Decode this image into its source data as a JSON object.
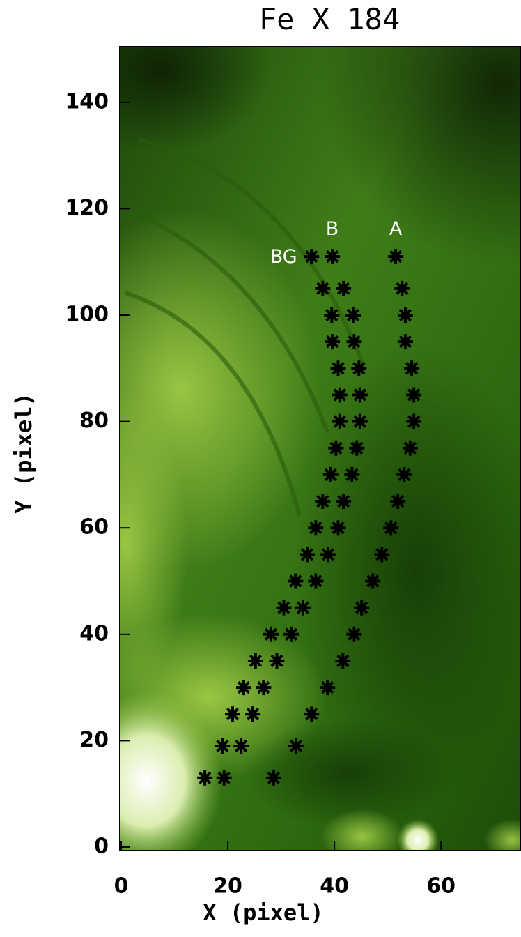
{
  "chart_data": {
    "type": "scatter",
    "title": "Fe X 184",
    "x_label": "X (pixel)",
    "y_label": "Y (pixel)",
    "xlim": [
      0,
      75
    ],
    "ylim": [
      0,
      150
    ],
    "xticks": [
      0,
      20,
      40,
      60
    ],
    "yticks": [
      0,
      20,
      40,
      60,
      80,
      100,
      120,
      140
    ],
    "marker": "asterisk",
    "series": [
      {
        "name": "BG",
        "color": "#000000",
        "x": [
          35.7,
          37.8,
          39.5,
          39.6,
          40.7,
          41.0,
          41.0,
          40.3,
          39.3,
          37.8,
          36.5,
          34.9,
          32.7,
          30.5,
          28.1,
          25.2,
          23.0,
          20.9,
          19.0,
          15.7
        ],
        "values": [
          111,
          105,
          100,
          95,
          90,
          85,
          80,
          75,
          70,
          65,
          60,
          55,
          50,
          45,
          40,
          35,
          30,
          25,
          19,
          13
        ]
      },
      {
        "name": "B",
        "color": "#000000",
        "x": [
          39.6,
          41.7,
          43.5,
          43.7,
          44.6,
          44.8,
          44.8,
          44.2,
          43.3,
          41.7,
          40.7,
          38.8,
          36.5,
          34.1,
          31.9,
          29.2,
          26.7,
          24.7,
          22.5,
          19.3
        ],
        "values": [
          111,
          105,
          100,
          95,
          90,
          85,
          80,
          75,
          70,
          65,
          60,
          55,
          50,
          45,
          40,
          35,
          30,
          25,
          19,
          13
        ]
      },
      {
        "name": "A",
        "color": "#000000",
        "x": [
          51.5,
          52.7,
          53.3,
          53.3,
          54.5,
          54.9,
          54.9,
          54.2,
          53.1,
          51.9,
          50.6,
          48.9,
          47.2,
          45.1,
          43.7,
          41.6,
          38.7,
          35.7,
          32.8,
          28.6
        ],
        "values": [
          111,
          105,
          100,
          95,
          90,
          85,
          80,
          75,
          70,
          65,
          60,
          55,
          50,
          45,
          40,
          35,
          30,
          25,
          19,
          13
        ]
      }
    ]
  }
}
